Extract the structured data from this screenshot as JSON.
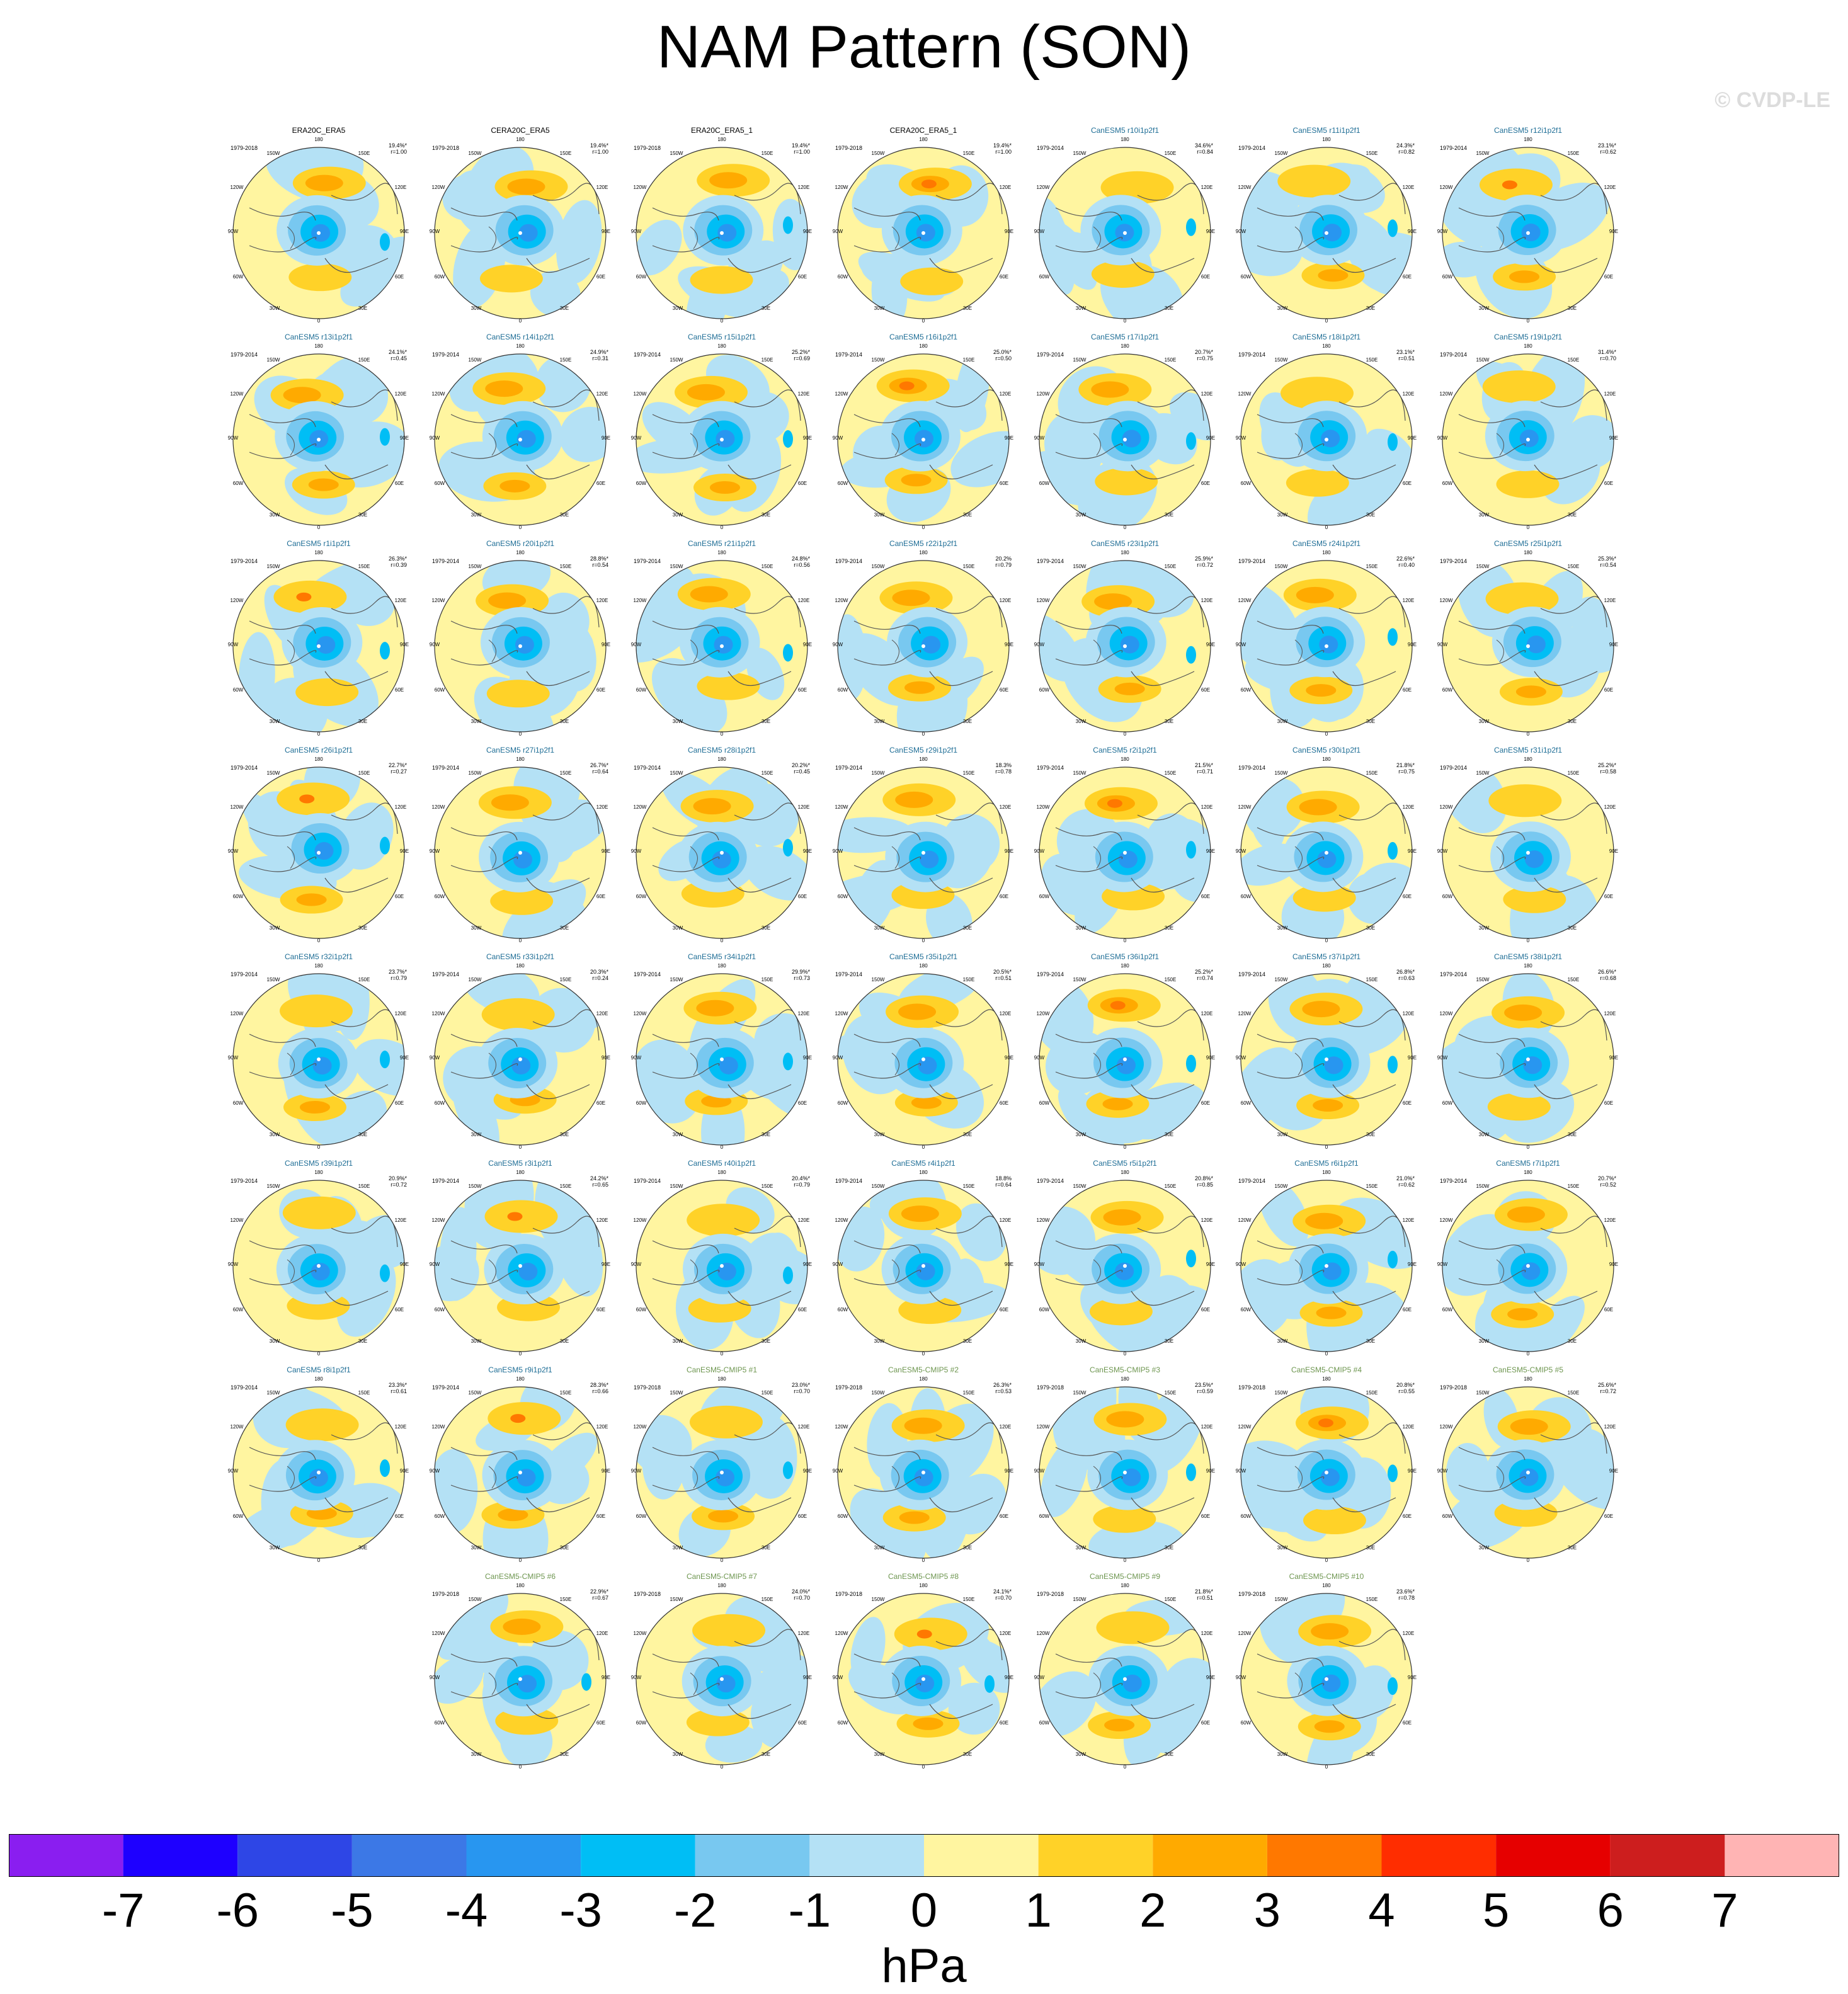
{
  "title": "NAM Pattern (SON)",
  "watermark": "© CVDP-LE",
  "colors": {
    "obs_title": "#000000",
    "model_title": "#1f6e96",
    "cmip5_title": "#6e9650",
    "land": "#555555"
  },
  "map_labels": {
    "lon_top": "180",
    "lon_150w": "150W",
    "lon_150e": "150E",
    "lon_120w": "120W",
    "lon_120e": "120E",
    "lon_90w": "90W",
    "lon_90e": "90E",
    "lon_60w": "60W",
    "lon_60e": "60E",
    "lon_30w": "30W",
    "lon_30e": "30E",
    "lon_bottom": "0"
  },
  "chart_data": {
    "type": "heatmap",
    "projection": "north-polar-stereographic",
    "variable": "sea level pressure NAM pattern",
    "units": "hPa",
    "colorbar": {
      "ticks": [
        "-7",
        "-6",
        "-5",
        "-4",
        "-3",
        "-2",
        "-1",
        "0",
        "1",
        "2",
        "3",
        "4",
        "5",
        "6",
        "7"
      ],
      "colors": [
        "#8a1ef0",
        "#1e00ff",
        "#2e46e6",
        "#3c78e6",
        "#2896f0",
        "#00bef5",
        "#78c8f0",
        "#b4e1f5",
        "#fff5a0",
        "#ffd228",
        "#ffaa00",
        "#ff7800",
        "#ff2d00",
        "#e60000",
        "#cd1e1e",
        "#ffb4b4"
      ]
    },
    "panels": [
      {
        "title": "ERA20C_ERA5",
        "years": "1979-2018",
        "pct": "19.4%*",
        "r": "r=1.00",
        "kind": "obs"
      },
      {
        "title": "CERA20C_ERA5",
        "years": "1979-2018",
        "pct": "19.4%*",
        "r": "r=1.00",
        "kind": "obs"
      },
      {
        "title": "ERA20C_ERA5_1",
        "years": "1979-2018",
        "pct": "19.4%*",
        "r": "r=1.00",
        "kind": "obs"
      },
      {
        "title": "CERA20C_ERA5_1",
        "years": "1979-2018",
        "pct": "19.4%*",
        "r": "r=1.00",
        "kind": "obs"
      },
      {
        "title": "CanESM5 r10i1p2f1",
        "years": "1979-2014",
        "pct": "34.6%*",
        "r": "r=0.84",
        "kind": "model"
      },
      {
        "title": "CanESM5 r11i1p2f1",
        "years": "1979-2014",
        "pct": "24.3%*",
        "r": "r=0.82",
        "kind": "model"
      },
      {
        "title": "CanESM5 r12i1p2f1",
        "years": "1979-2014",
        "pct": "23.1%*",
        "r": "r=0.62",
        "kind": "model"
      },
      {
        "title": "CanESM5 r13i1p2f1",
        "years": "1979-2014",
        "pct": "24.1%*",
        "r": "r=0.45",
        "kind": "model"
      },
      {
        "title": "CanESM5 r14i1p2f1",
        "years": "1979-2014",
        "pct": "24.9%*",
        "r": "r=0.31",
        "kind": "model"
      },
      {
        "title": "CanESM5 r15i1p2f1",
        "years": "1979-2014",
        "pct": "25.2%*",
        "r": "r=0.69",
        "kind": "model"
      },
      {
        "title": "CanESM5 r16i1p2f1",
        "years": "1979-2014",
        "pct": "25.0%*",
        "r": "r=0.50",
        "kind": "model"
      },
      {
        "title": "CanESM5 r17i1p2f1",
        "years": "1979-2014",
        "pct": "20.7%*",
        "r": "r=0.75",
        "kind": "model"
      },
      {
        "title": "CanESM5 r18i1p2f1",
        "years": "1979-2014",
        "pct": "23.1%*",
        "r": "r=0.51",
        "kind": "model"
      },
      {
        "title": "CanESM5 r19i1p2f1",
        "years": "1979-2014",
        "pct": "31.4%*",
        "r": "r=0.70",
        "kind": "model"
      },
      {
        "title": "CanESM5 r1i1p2f1",
        "years": "1979-2014",
        "pct": "26.3%*",
        "r": "r=0.39",
        "kind": "model"
      },
      {
        "title": "CanESM5 r20i1p2f1",
        "years": "1979-2014",
        "pct": "28.8%*",
        "r": "r=0.54",
        "kind": "model"
      },
      {
        "title": "CanESM5 r21i1p2f1",
        "years": "1979-2014",
        "pct": "24.8%*",
        "r": "r=0.56",
        "kind": "model"
      },
      {
        "title": "CanESM5 r22i1p2f1",
        "years": "1979-2014",
        "pct": "20.2%",
        "r": "r=0.79",
        "kind": "model"
      },
      {
        "title": "CanESM5 r23i1p2f1",
        "years": "1979-2014",
        "pct": "25.9%*",
        "r": "r=0.72",
        "kind": "model"
      },
      {
        "title": "CanESM5 r24i1p2f1",
        "years": "1979-2014",
        "pct": "22.6%*",
        "r": "r=0.40",
        "kind": "model"
      },
      {
        "title": "CanESM5 r25i1p2f1",
        "years": "1979-2014",
        "pct": "25.3%*",
        "r": "r=0.54",
        "kind": "model"
      },
      {
        "title": "CanESM5 r26i1p2f1",
        "years": "1979-2014",
        "pct": "22.7%*",
        "r": "r=0.27",
        "kind": "model"
      },
      {
        "title": "CanESM5 r27i1p2f1",
        "years": "1979-2014",
        "pct": "26.7%*",
        "r": "r=0.64",
        "kind": "model"
      },
      {
        "title": "CanESM5 r28i1p2f1",
        "years": "1979-2014",
        "pct": "20.2%*",
        "r": "r=0.45",
        "kind": "model"
      },
      {
        "title": "CanESM5 r29i1p2f1",
        "years": "1979-2014",
        "pct": "18.3%",
        "r": "r=0.78",
        "kind": "model"
      },
      {
        "title": "CanESM5 r2i1p2f1",
        "years": "1979-2014",
        "pct": "21.5%*",
        "r": "r=0.71",
        "kind": "model"
      },
      {
        "title": "CanESM5 r30i1p2f1",
        "years": "1979-2014",
        "pct": "21.8%*",
        "r": "r=0.75",
        "kind": "model"
      },
      {
        "title": "CanESM5 r31i1p2f1",
        "years": "1979-2014",
        "pct": "25.2%*",
        "r": "r=0.58",
        "kind": "model"
      },
      {
        "title": "CanESM5 r32i1p2f1",
        "years": "1979-2014",
        "pct": "23.7%*",
        "r": "r=0.79",
        "kind": "model"
      },
      {
        "title": "CanESM5 r33i1p2f1",
        "years": "1979-2014",
        "pct": "20.3%*",
        "r": "r=0.24",
        "kind": "model"
      },
      {
        "title": "CanESM5 r34i1p2f1",
        "years": "1979-2014",
        "pct": "29.9%*",
        "r": "r=0.73",
        "kind": "model"
      },
      {
        "title": "CanESM5 r35i1p2f1",
        "years": "1979-2014",
        "pct": "20.5%*",
        "r": "r=0.51",
        "kind": "model"
      },
      {
        "title": "CanESM5 r36i1p2f1",
        "years": "1979-2014",
        "pct": "25.2%*",
        "r": "r=0.74",
        "kind": "model"
      },
      {
        "title": "CanESM5 r37i1p2f1",
        "years": "1979-2014",
        "pct": "26.8%*",
        "r": "r=0.63",
        "kind": "model"
      },
      {
        "title": "CanESM5 r38i1p2f1",
        "years": "1979-2014",
        "pct": "26.6%*",
        "r": "r=0.68",
        "kind": "model"
      },
      {
        "title": "CanESM5 r39i1p2f1",
        "years": "1979-2014",
        "pct": "20.9%*",
        "r": "r=0.72",
        "kind": "model"
      },
      {
        "title": "CanESM5 r3i1p2f1",
        "years": "1979-2014",
        "pct": "24.2%*",
        "r": "r=0.65",
        "kind": "model"
      },
      {
        "title": "CanESM5 r40i1p2f1",
        "years": "1979-2014",
        "pct": "20.4%*",
        "r": "r=0.79",
        "kind": "model"
      },
      {
        "title": "CanESM5 r4i1p2f1",
        "years": "1979-2014",
        "pct": "18.8%",
        "r": "r=0.64",
        "kind": "model"
      },
      {
        "title": "CanESM5 r5i1p2f1",
        "years": "1979-2014",
        "pct": "20.8%*",
        "r": "r=0.85",
        "kind": "model"
      },
      {
        "title": "CanESM5 r6i1p2f1",
        "years": "1979-2014",
        "pct": "21.0%*",
        "r": "r=0.62",
        "kind": "model"
      },
      {
        "title": "CanESM5 r7i1p2f1",
        "years": "1979-2014",
        "pct": "20.7%*",
        "r": "r=0.52",
        "kind": "model"
      },
      {
        "title": "CanESM5 r8i1p2f1",
        "years": "1979-2014",
        "pct": "23.3%*",
        "r": "r=0.61",
        "kind": "model"
      },
      {
        "title": "CanESM5 r9i1p2f1",
        "years": "1979-2014",
        "pct": "28.3%*",
        "r": "r=0.66",
        "kind": "model"
      },
      {
        "title": "CanESM5-CMIP5 #1",
        "years": "1979-2018",
        "pct": "23.0%*",
        "r": "r=0.70",
        "kind": "cmip5"
      },
      {
        "title": "CanESM5-CMIP5 #2",
        "years": "1979-2018",
        "pct": "26.3%*",
        "r": "r=0.53",
        "kind": "cmip5"
      },
      {
        "title": "CanESM5-CMIP5 #3",
        "years": "1979-2018",
        "pct": "23.5%*",
        "r": "r=0.59",
        "kind": "cmip5"
      },
      {
        "title": "CanESM5-CMIP5 #4",
        "years": "1979-2018",
        "pct": "20.8%*",
        "r": "r=0.55",
        "kind": "cmip5"
      },
      {
        "title": "CanESM5-CMIP5 #5",
        "years": "1979-2018",
        "pct": "25.6%*",
        "r": "r=0.72",
        "kind": "cmip5"
      },
      {
        "title": "CanESM5-CMIP5 #6",
        "years": "1979-2018",
        "pct": "22.9%*",
        "r": "r=0.67",
        "kind": "cmip5"
      },
      {
        "title": "CanESM5-CMIP5 #7",
        "years": "1979-2018",
        "pct": "24.0%*",
        "r": "r=0.70",
        "kind": "cmip5"
      },
      {
        "title": "CanESM5-CMIP5 #8",
        "years": "1979-2018",
        "pct": "24.1%*",
        "r": "r=0.70",
        "kind": "cmip5"
      },
      {
        "title": "CanESM5-CMIP5 #9",
        "years": "1979-2018",
        "pct": "21.8%*",
        "r": "r=0.51",
        "kind": "cmip5"
      },
      {
        "title": "CanESM5-CMIP5 #10",
        "years": "1979-2018",
        "pct": "23.6%*",
        "r": "r=0.78",
        "kind": "cmip5"
      }
    ]
  }
}
